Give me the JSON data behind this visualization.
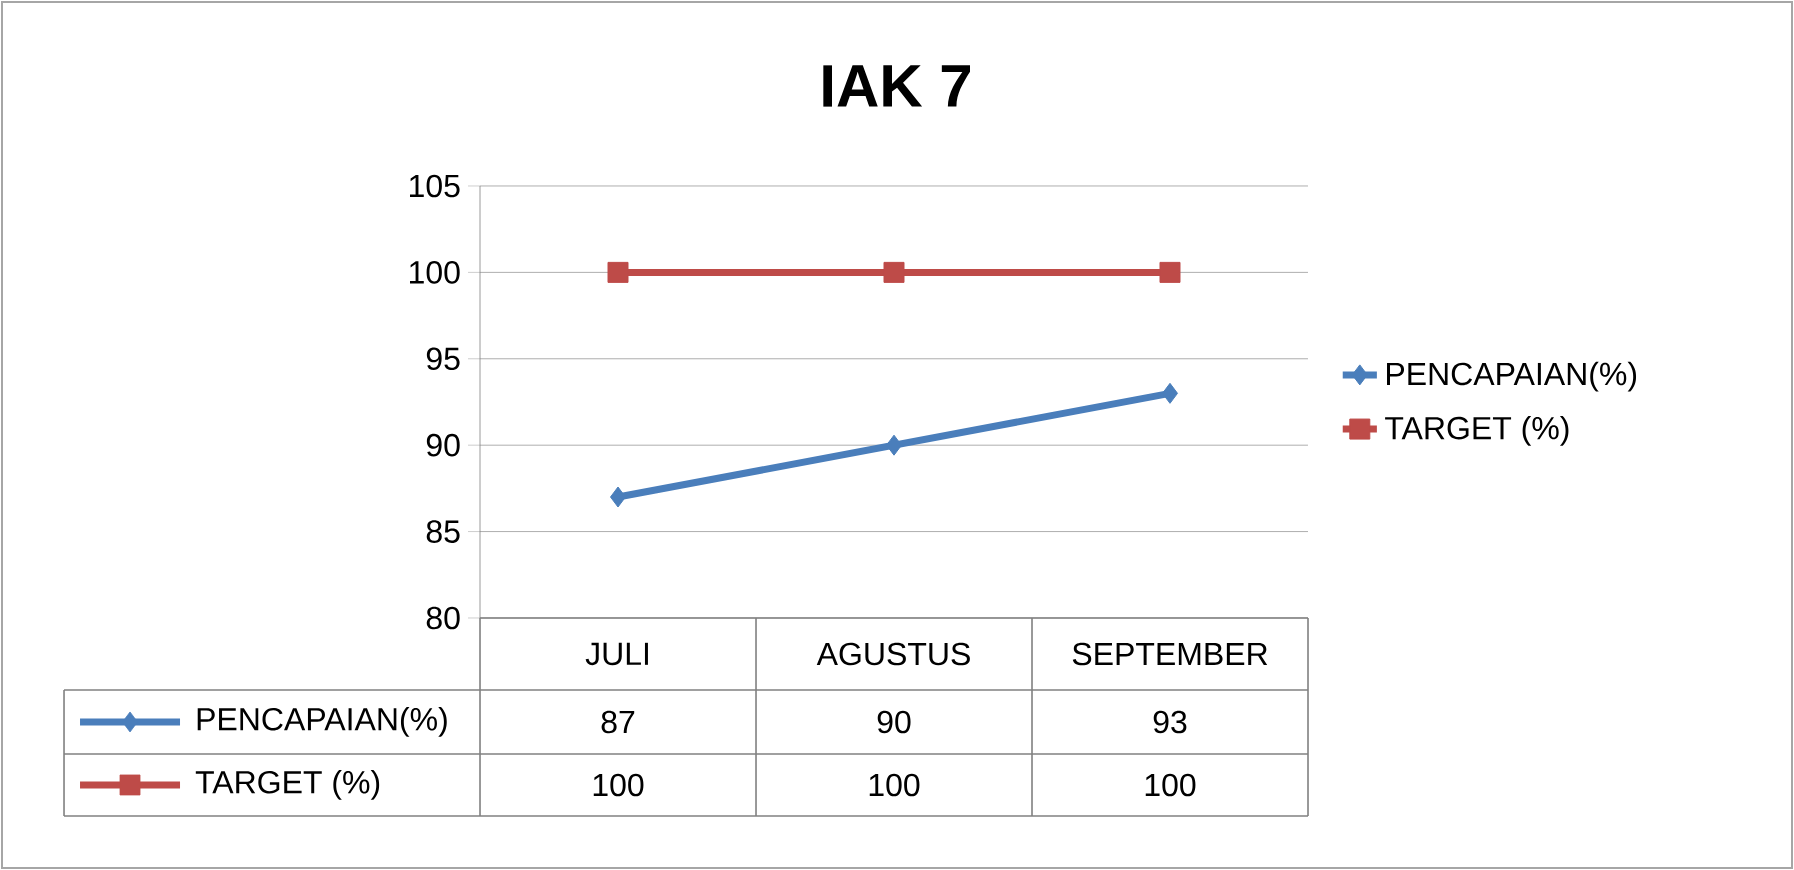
{
  "chart_data": {
    "type": "line",
    "title": "IAK  7",
    "categories": [
      "JULI",
      "AGUSTUS",
      "SEPTEMBER"
    ],
    "series": [
      {
        "name": "PENCAPAIAN(%)",
        "color": "#4a7ebb",
        "values": [
          87,
          90,
          93
        ],
        "marker": "diamond"
      },
      {
        "name": "TARGET (%)",
        "color": "#be4b48",
        "values": [
          100,
          100,
          100
        ],
        "marker": "square"
      }
    ],
    "ylim": [
      80,
      105
    ],
    "yticks": [
      80,
      85,
      90,
      95,
      100,
      105
    ],
    "grid": "y",
    "legend": "right",
    "data_labels": true
  }
}
